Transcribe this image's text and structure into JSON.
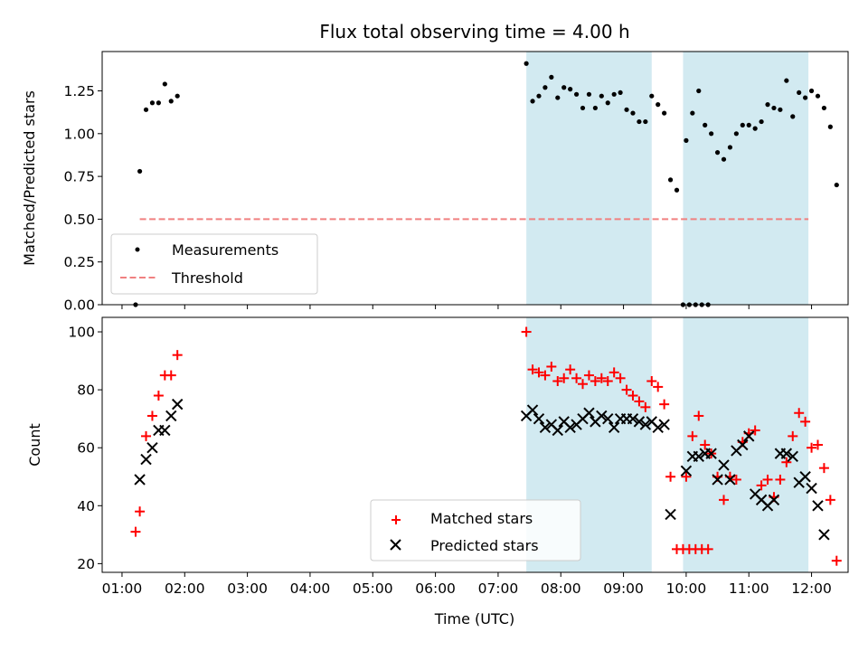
{
  "chart_data": [
    {
      "type": "scatter",
      "title": "Flux total observing time = 4.00 h",
      "xlabel": "",
      "ylabel": "Matched/Predicted stars",
      "xlim": [
        "01:00",
        "12:00"
      ],
      "ylim": [
        0,
        1.48
      ],
      "x_tick_labels": [],
      "y_tick_labels": [
        "0.00",
        "0.25",
        "0.50",
        "0.75",
        "1.00",
        "1.25"
      ],
      "y_ticks": [
        0,
        0.25,
        0.5,
        0.75,
        1.0,
        1.25
      ],
      "shaded_intervals": [
        [
          "07:27",
          "09:27"
        ],
        [
          "09:57",
          "11:57"
        ]
      ],
      "legend": {
        "placement": "lower-left",
        "entries": [
          {
            "label": "Measurements",
            "marker": "dot"
          },
          {
            "label": "Threshold",
            "marker": "dashed-line"
          }
        ]
      },
      "series": [
        {
          "name": "Measurements",
          "color": "#000000",
          "marker": "dot",
          "points": [
            [
              "01:13",
              0.0
            ],
            [
              "01:17",
              0.78
            ],
            [
              "01:23",
              1.14
            ],
            [
              "01:29",
              1.18
            ],
            [
              "01:35",
              1.18
            ],
            [
              "01:41",
              1.29
            ],
            [
              "01:47",
              1.19
            ],
            [
              "01:53",
              1.22
            ],
            [
              "07:27",
              1.41
            ],
            [
              "07:33",
              1.19
            ],
            [
              "07:39",
              1.22
            ],
            [
              "07:45",
              1.27
            ],
            [
              "07:51",
              1.33
            ],
            [
              "07:57",
              1.21
            ],
            [
              "08:03",
              1.27
            ],
            [
              "08:09",
              1.26
            ],
            [
              "08:15",
              1.23
            ],
            [
              "08:21",
              1.15
            ],
            [
              "08:27",
              1.23
            ],
            [
              "08:33",
              1.15
            ],
            [
              "08:39",
              1.22
            ],
            [
              "08:45",
              1.18
            ],
            [
              "08:51",
              1.23
            ],
            [
              "08:57",
              1.24
            ],
            [
              "09:03",
              1.14
            ],
            [
              "09:09",
              1.12
            ],
            [
              "09:15",
              1.07
            ],
            [
              "09:21",
              1.07
            ],
            [
              "09:27",
              1.22
            ],
            [
              "09:33",
              1.17
            ],
            [
              "09:39",
              1.12
            ],
            [
              "09:45",
              0.73
            ],
            [
              "09:51",
              0.67
            ],
            [
              "09:57",
              0.0
            ],
            [
              "10:03",
              0.0
            ],
            [
              "10:09",
              0.0
            ],
            [
              "10:15",
              0.0
            ],
            [
              "10:21",
              0.0
            ],
            [
              "10:00",
              0.96
            ],
            [
              "10:06",
              1.12
            ],
            [
              "10:12",
              1.25
            ],
            [
              "10:18",
              1.05
            ],
            [
              "10:24",
              1.0
            ],
            [
              "10:30",
              0.89
            ],
            [
              "10:36",
              0.85
            ],
            [
              "10:42",
              0.92
            ],
            [
              "10:48",
              1.0
            ],
            [
              "10:54",
              1.05
            ],
            [
              "11:00",
              1.05
            ],
            [
              "11:06",
              1.03
            ],
            [
              "11:12",
              1.07
            ],
            [
              "11:18",
              1.17
            ],
            [
              "11:24",
              1.15
            ],
            [
              "11:30",
              1.14
            ],
            [
              "11:36",
              1.31
            ],
            [
              "11:42",
              1.1
            ],
            [
              "11:48",
              1.24
            ],
            [
              "11:54",
              1.21
            ],
            [
              "12:00",
              1.25
            ],
            [
              "12:06",
              1.22
            ],
            [
              "12:12",
              1.15
            ],
            [
              "12:18",
              1.04
            ],
            [
              "12:24",
              0.7
            ]
          ]
        },
        {
          "name": "Threshold",
          "color": "#f08080",
          "marker": "dashed-line",
          "x_range": [
            "01:17",
            "11:57"
          ],
          "value": 0.5
        }
      ]
    },
    {
      "type": "scatter",
      "title": "",
      "xlabel": "Time (UTC)",
      "ylabel": "Count",
      "xlim": [
        "01:00",
        "12:00"
      ],
      "ylim": [
        17,
        105
      ],
      "x_tick_labels": [
        "01:00",
        "02:00",
        "03:00",
        "04:00",
        "05:00",
        "06:00",
        "07:00",
        "08:00",
        "09:00",
        "10:00",
        "11:00",
        "12:00"
      ],
      "y_tick_labels": [
        "20",
        "40",
        "60",
        "80",
        "100"
      ],
      "y_ticks": [
        20,
        40,
        60,
        80,
        100
      ],
      "shaded_intervals": [
        [
          "07:27",
          "09:27"
        ],
        [
          "09:57",
          "11:57"
        ]
      ],
      "legend": {
        "placement": "lower-center",
        "entries": [
          {
            "label": "Matched stars",
            "marker": "plus"
          },
          {
            "label": "Predicted stars",
            "marker": "x"
          }
        ]
      },
      "series": [
        {
          "name": "Matched stars",
          "color": "#ff0000",
          "marker": "plus",
          "points": [
            [
              "01:13",
              31
            ],
            [
              "01:17",
              38
            ],
            [
              "01:23",
              64
            ],
            [
              "01:29",
              71
            ],
            [
              "01:35",
              78
            ],
            [
              "01:41",
              85
            ],
            [
              "01:47",
              85
            ],
            [
              "01:53",
              92
            ],
            [
              "07:27",
              100
            ],
            [
              "07:33",
              87
            ],
            [
              "07:39",
              86
            ],
            [
              "07:45",
              85
            ],
            [
              "07:51",
              88
            ],
            [
              "07:57",
              83
            ],
            [
              "08:03",
              84
            ],
            [
              "08:09",
              87
            ],
            [
              "08:15",
              84
            ],
            [
              "08:21",
              82
            ],
            [
              "08:27",
              85
            ],
            [
              "08:33",
              83
            ],
            [
              "08:39",
              84
            ],
            [
              "08:45",
              83
            ],
            [
              "08:51",
              86
            ],
            [
              "08:57",
              84
            ],
            [
              "09:03",
              80
            ],
            [
              "09:09",
              78
            ],
            [
              "09:15",
              76
            ],
            [
              "09:21",
              74
            ],
            [
              "09:27",
              83
            ],
            [
              "09:33",
              81
            ],
            [
              "09:39",
              75
            ],
            [
              "09:45",
              50
            ],
            [
              "09:51",
              25
            ],
            [
              "09:57",
              25
            ],
            [
              "10:03",
              25
            ],
            [
              "10:09",
              25
            ],
            [
              "10:15",
              25
            ],
            [
              "10:21",
              25
            ],
            [
              "10:00",
              50
            ],
            [
              "10:06",
              64
            ],
            [
              "10:12",
              71
            ],
            [
              "10:18",
              61
            ],
            [
              "10:24",
              58
            ],
            [
              "10:30",
              50
            ],
            [
              "10:36",
              42
            ],
            [
              "10:42",
              50
            ],
            [
              "10:48",
              49
            ],
            [
              "10:54",
              62
            ],
            [
              "11:00",
              65
            ],
            [
              "11:06",
              66
            ],
            [
              "11:12",
              47
            ],
            [
              "11:18",
              49
            ],
            [
              "11:24",
              43
            ],
            [
              "11:30",
              49
            ],
            [
              "11:36",
              55
            ],
            [
              "11:42",
              64
            ],
            [
              "11:48",
              72
            ],
            [
              "11:54",
              69
            ],
            [
              "12:00",
              60
            ],
            [
              "12:06",
              61
            ],
            [
              "12:12",
              53
            ],
            [
              "12:18",
              42
            ],
            [
              "12:24",
              21
            ]
          ]
        },
        {
          "name": "Predicted stars",
          "color": "#000000",
          "marker": "x",
          "points": [
            [
              "01:17",
              49
            ],
            [
              "01:23",
              56
            ],
            [
              "01:29",
              60
            ],
            [
              "01:35",
              66
            ],
            [
              "01:41",
              66
            ],
            [
              "01:47",
              71
            ],
            [
              "01:53",
              75
            ],
            [
              "07:27",
              71
            ],
            [
              "07:33",
              73
            ],
            [
              "07:39",
              70
            ],
            [
              "07:45",
              67
            ],
            [
              "07:51",
              68
            ],
            [
              "07:57",
              66
            ],
            [
              "08:03",
              69
            ],
            [
              "08:09",
              67
            ],
            [
              "08:15",
              68
            ],
            [
              "08:21",
              70
            ],
            [
              "08:27",
              72
            ],
            [
              "08:33",
              69
            ],
            [
              "08:39",
              71
            ],
            [
              "08:45",
              70
            ],
            [
              "08:51",
              67
            ],
            [
              "08:57",
              70
            ],
            [
              "09:03",
              70
            ],
            [
              "09:09",
              70
            ],
            [
              "09:15",
              69
            ],
            [
              "09:21",
              68
            ],
            [
              "09:27",
              69
            ],
            [
              "09:33",
              67
            ],
            [
              "09:39",
              68
            ],
            [
              "09:45",
              37
            ],
            [
              "10:00",
              52
            ],
            [
              "10:06",
              57
            ],
            [
              "10:12",
              57
            ],
            [
              "10:18",
              58
            ],
            [
              "10:24",
              58
            ],
            [
              "10:30",
              49
            ],
            [
              "10:36",
              54
            ],
            [
              "10:42",
              49
            ],
            [
              "10:48",
              59
            ],
            [
              "10:54",
              61
            ],
            [
              "11:00",
              64
            ],
            [
              "11:06",
              44
            ],
            [
              "11:12",
              42
            ],
            [
              "11:18",
              40
            ],
            [
              "11:24",
              42
            ],
            [
              "11:30",
              58
            ],
            [
              "11:36",
              58
            ],
            [
              "11:42",
              57
            ],
            [
              "11:48",
              48
            ],
            [
              "11:54",
              50
            ],
            [
              "12:00",
              46
            ],
            [
              "12:06",
              40
            ],
            [
              "12:12",
              30
            ]
          ]
        }
      ]
    }
  ]
}
